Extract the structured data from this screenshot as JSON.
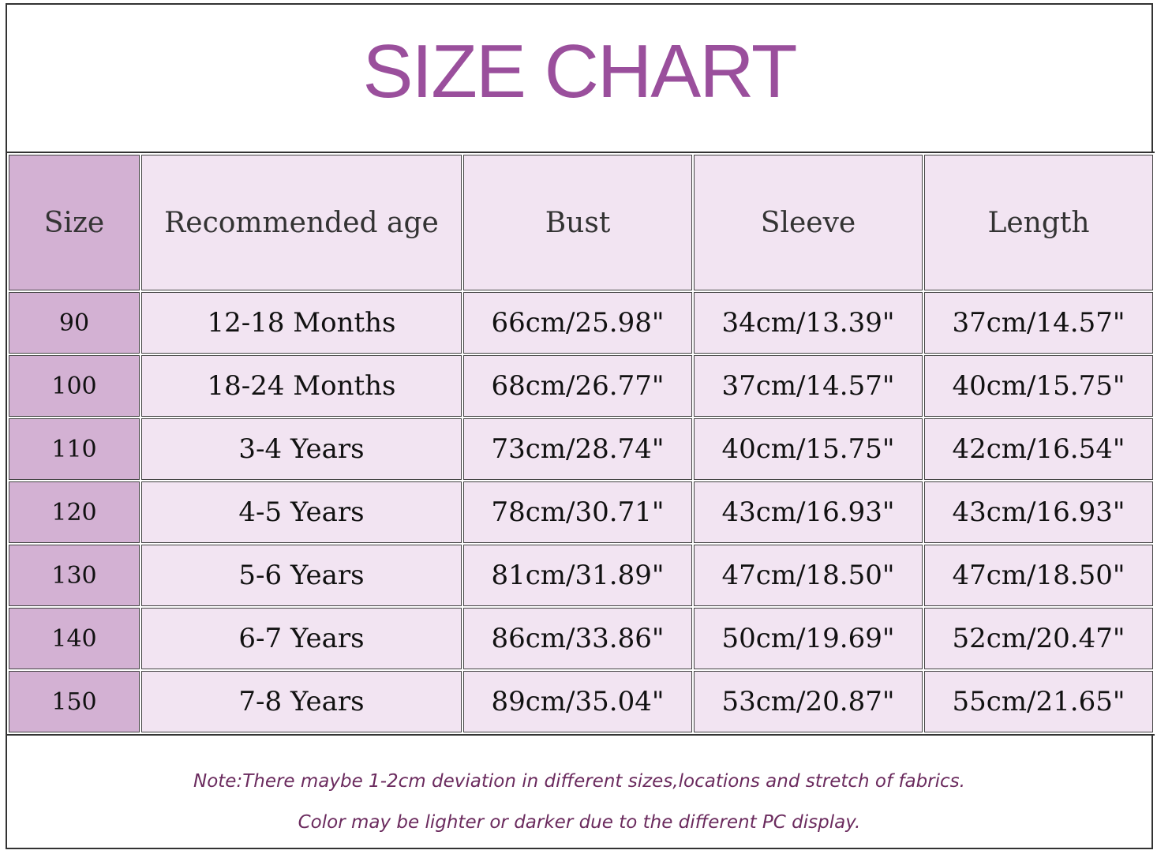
{
  "header": {
    "title": "SIZE CHART"
  },
  "table": {
    "columns": [
      "Size",
      "Recommended age",
      "Bust",
      "Sleeve",
      "Length"
    ],
    "rows": [
      [
        "90",
        "12-18 Months",
        "66cm/25.98\"",
        "34cm/13.39\"",
        "37cm/14.57\""
      ],
      [
        "100",
        "18-24 Months",
        "68cm/26.77\"",
        "37cm/14.57\"",
        "40cm/15.75\""
      ],
      [
        "110",
        "3-4 Years",
        "73cm/28.74\"",
        "40cm/15.75\"",
        "42cm/16.54\""
      ],
      [
        "120",
        "4-5 Years",
        "78cm/30.71\"",
        "43cm/16.93\"",
        "43cm/16.93\""
      ],
      [
        "130",
        "5-6 Years",
        "81cm/31.89\"",
        "47cm/18.50\"",
        "47cm/18.50\""
      ],
      [
        "140",
        "6-7 Years",
        "86cm/33.86\"",
        "50cm/19.69\"",
        "52cm/20.47\""
      ],
      [
        "150",
        "7-8 Years",
        "89cm/35.04\"",
        "53cm/20.87\"",
        "55cm/21.65\""
      ]
    ]
  },
  "note": {
    "lines": [
      "Note:There maybe 1-2cm deviation in different sizes,locations and stretch of fabrics.",
      "Color may be lighter or darker due to the different PC display."
    ]
  }
}
